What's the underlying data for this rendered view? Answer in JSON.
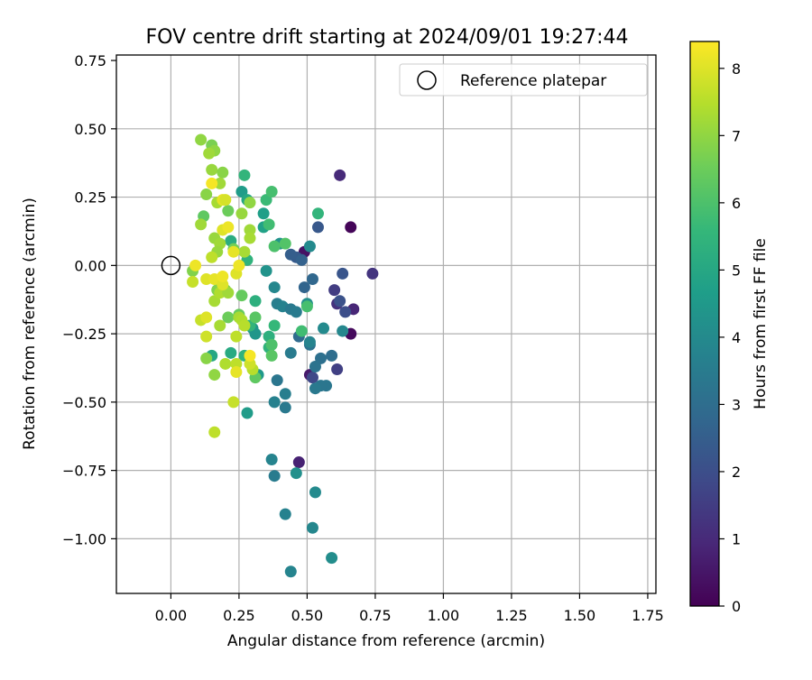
{
  "chart_data": {
    "type": "scatter",
    "title": "FOV centre drift starting at 2024/09/01 19:27:44",
    "xlabel": "Angular distance from reference (arcmin)",
    "ylabel": "Rotation from reference (arcmin)",
    "xlim": [
      -0.2,
      1.78
    ],
    "ylim": [
      -1.2,
      0.77
    ],
    "xticks": [
      0.0,
      0.25,
      0.5,
      0.75,
      1.0,
      1.25,
      1.5,
      1.75
    ],
    "xtick_labels": [
      "0.00",
      "0.25",
      "0.50",
      "0.75",
      "1.00",
      "1.25",
      "1.50",
      "1.75"
    ],
    "yticks": [
      0.5,
      0.25,
      0.0,
      -0.25,
      -0.5,
      -0.75,
      -1.0
    ],
    "ytick_labels": [
      "0.50",
      "0.25",
      "0.00",
      "−0.25",
      "−0.50",
      "−0.75",
      "−1.00"
    ],
    "ytick_top_label": "0.75",
    "grid": true,
    "legend": {
      "location": "upper right",
      "entries": [
        "Reference platepar"
      ]
    },
    "reference_point": {
      "x": 0.0,
      "y": 0.0
    },
    "colorbar": {
      "label": "Hours from first FF file",
      "colormap": "viridis",
      "range": [
        0,
        8.4
      ],
      "ticks": [
        0,
        1,
        2,
        3,
        4,
        5,
        6,
        7,
        8
      ],
      "tick_labels": [
        "0",
        "1",
        "2",
        "3",
        "4",
        "5",
        "6",
        "7",
        "8"
      ]
    },
    "points": [
      {
        "x": 0.66,
        "y": 0.14,
        "c": 0.1
      },
      {
        "x": 0.66,
        "y": -0.25,
        "c": 0.2
      },
      {
        "x": 0.49,
        "y": 0.05,
        "c": 0.4
      },
      {
        "x": 0.51,
        "y": -0.4,
        "c": 0.6
      },
      {
        "x": 0.47,
        "y": -0.72,
        "c": 0.8
      },
      {
        "x": 0.67,
        "y": -0.16,
        "c": 0.9
      },
      {
        "x": 0.62,
        "y": 0.33,
        "c": 1.0
      },
      {
        "x": 0.61,
        "y": -0.14,
        "c": 1.2
      },
      {
        "x": 0.74,
        "y": -0.03,
        "c": 1.3
      },
      {
        "x": 0.6,
        "y": -0.09,
        "c": 1.5
      },
      {
        "x": 0.61,
        "y": -0.38,
        "c": 1.6
      },
      {
        "x": 0.52,
        "y": -0.41,
        "c": 1.8
      },
      {
        "x": 0.64,
        "y": -0.17,
        "c": 2.0
      },
      {
        "x": 0.62,
        "y": -0.13,
        "c": 2.1
      },
      {
        "x": 0.63,
        "y": -0.03,
        "c": 2.2
      },
      {
        "x": 0.54,
        "y": 0.14,
        "c": 2.3
      },
      {
        "x": 0.46,
        "y": 0.03,
        "c": 2.4
      },
      {
        "x": 0.44,
        "y": 0.04,
        "c": 2.5
      },
      {
        "x": 0.48,
        "y": 0.02,
        "c": 2.6
      },
      {
        "x": 0.49,
        "y": -0.08,
        "c": 2.7
      },
      {
        "x": 0.52,
        "y": -0.05,
        "c": 2.8
      },
      {
        "x": 0.47,
        "y": -0.26,
        "c": 2.9
      },
      {
        "x": 0.59,
        "y": -0.33,
        "c": 3.0
      },
      {
        "x": 0.55,
        "y": -0.34,
        "c": 3.1
      },
      {
        "x": 0.53,
        "y": -0.37,
        "c": 3.2
      },
      {
        "x": 0.57,
        "y": -0.44,
        "c": 3.3
      },
      {
        "x": 0.55,
        "y": -0.44,
        "c": 3.3
      },
      {
        "x": 0.53,
        "y": -0.45,
        "c": 3.4
      },
      {
        "x": 0.51,
        "y": -0.29,
        "c": 3.2
      },
      {
        "x": 0.44,
        "y": -0.32,
        "c": 3.5
      },
      {
        "x": 0.42,
        "y": -0.52,
        "c": 3.4
      },
      {
        "x": 0.42,
        "y": -0.47,
        "c": 3.6
      },
      {
        "x": 0.39,
        "y": -0.42,
        "c": 3.3
      },
      {
        "x": 0.38,
        "y": -0.5,
        "c": 3.7
      },
      {
        "x": 0.38,
        "y": -0.77,
        "c": 3.5
      },
      {
        "x": 0.37,
        "y": -0.71,
        "c": 3.8
      },
      {
        "x": 0.42,
        "y": -0.91,
        "c": 3.7
      },
      {
        "x": 0.44,
        "y": -1.12,
        "c": 3.8
      },
      {
        "x": 0.52,
        "y": -0.96,
        "c": 3.9
      },
      {
        "x": 0.53,
        "y": -0.83,
        "c": 4.0
      },
      {
        "x": 0.59,
        "y": -1.07,
        "c": 4.1
      },
      {
        "x": 0.46,
        "y": -0.76,
        "c": 4.2
      },
      {
        "x": 0.39,
        "y": -0.14,
        "c": 3.6
      },
      {
        "x": 0.41,
        "y": -0.15,
        "c": 3.7
      },
      {
        "x": 0.38,
        "y": -0.08,
        "c": 3.9
      },
      {
        "x": 0.44,
        "y": -0.16,
        "c": 3.4
      },
      {
        "x": 0.46,
        "y": -0.17,
        "c": 3.5
      },
      {
        "x": 0.51,
        "y": -0.28,
        "c": 3.8
      },
      {
        "x": 0.56,
        "y": -0.23,
        "c": 4.0
      },
      {
        "x": 0.63,
        "y": -0.24,
        "c": 3.9
      },
      {
        "x": 0.5,
        "y": -0.14,
        "c": 4.2
      },
      {
        "x": 0.51,
        "y": 0.07,
        "c": 4.0
      },
      {
        "x": 0.4,
        "y": 0.08,
        "c": 4.3
      },
      {
        "x": 0.35,
        "y": -0.02,
        "c": 4.3
      },
      {
        "x": 0.31,
        "y": -0.25,
        "c": 4.4
      },
      {
        "x": 0.3,
        "y": -0.23,
        "c": 4.4
      },
      {
        "x": 0.32,
        "y": -0.4,
        "c": 4.5
      },
      {
        "x": 0.28,
        "y": -0.54,
        "c": 4.6
      },
      {
        "x": 0.26,
        "y": 0.27,
        "c": 4.6
      },
      {
        "x": 0.34,
        "y": 0.19,
        "c": 4.7
      },
      {
        "x": 0.34,
        "y": 0.14,
        "c": 4.8
      },
      {
        "x": 0.28,
        "y": 0.24,
        "c": 5.0
      },
      {
        "x": 0.22,
        "y": 0.09,
        "c": 5.2
      },
      {
        "x": 0.28,
        "y": 0.02,
        "c": 5.4
      },
      {
        "x": 0.15,
        "y": -0.33,
        "c": 5.0
      },
      {
        "x": 0.22,
        "y": -0.32,
        "c": 5.1
      },
      {
        "x": 0.27,
        "y": -0.33,
        "c": 5.4
      },
      {
        "x": 0.31,
        "y": -0.13,
        "c": 5.3
      },
      {
        "x": 0.29,
        "y": -0.22,
        "c": 5.5
      },
      {
        "x": 0.36,
        "y": -0.26,
        "c": 5.3
      },
      {
        "x": 0.36,
        "y": -0.3,
        "c": 5.4
      },
      {
        "x": 0.38,
        "y": -0.22,
        "c": 5.6
      },
      {
        "x": 0.48,
        "y": -0.24,
        "c": 5.8
      },
      {
        "x": 0.5,
        "y": -0.15,
        "c": 5.9
      },
      {
        "x": 0.54,
        "y": 0.19,
        "c": 5.5
      },
      {
        "x": 0.35,
        "y": 0.24,
        "c": 5.7
      },
      {
        "x": 0.36,
        "y": 0.15,
        "c": 5.8
      },
      {
        "x": 0.37,
        "y": 0.27,
        "c": 5.9
      },
      {
        "x": 0.27,
        "y": 0.33,
        "c": 5.5
      },
      {
        "x": 0.38,
        "y": 0.07,
        "c": 6.0
      },
      {
        "x": 0.42,
        "y": 0.08,
        "c": 6.1
      },
      {
        "x": 0.37,
        "y": -0.29,
        "c": 6.0
      },
      {
        "x": 0.37,
        "y": -0.33,
        "c": 6.2
      },
      {
        "x": 0.31,
        "y": -0.19,
        "c": 6.2
      },
      {
        "x": 0.31,
        "y": -0.41,
        "c": 6.3
      },
      {
        "x": 0.25,
        "y": -0.18,
        "c": 6.4
      },
      {
        "x": 0.26,
        "y": -0.11,
        "c": 6.4
      },
      {
        "x": 0.21,
        "y": -0.19,
        "c": 6.5
      },
      {
        "x": 0.12,
        "y": 0.18,
        "c": 6.3
      },
      {
        "x": 0.21,
        "y": 0.2,
        "c": 6.5
      },
      {
        "x": 0.23,
        "y": 0.06,
        "c": 6.6
      },
      {
        "x": 0.2,
        "y": -0.09,
        "c": 6.7
      },
      {
        "x": 0.17,
        "y": -0.09,
        "c": 6.8
      },
      {
        "x": 0.13,
        "y": -0.34,
        "c": 6.9
      },
      {
        "x": 0.16,
        "y": -0.4,
        "c": 7.0
      },
      {
        "x": 0.08,
        "y": -0.02,
        "c": 6.8
      },
      {
        "x": 0.13,
        "y": 0.26,
        "c": 6.9
      },
      {
        "x": 0.15,
        "y": 0.44,
        "c": 6.7
      },
      {
        "x": 0.11,
        "y": 0.46,
        "c": 7.0
      },
      {
        "x": 0.16,
        "y": 0.42,
        "c": 7.0
      },
      {
        "x": 0.14,
        "y": 0.41,
        "c": 7.2
      },
      {
        "x": 0.15,
        "y": 0.35,
        "c": 7.1
      },
      {
        "x": 0.19,
        "y": 0.34,
        "c": 6.9
      },
      {
        "x": 0.18,
        "y": 0.3,
        "c": 7.2
      },
      {
        "x": 0.17,
        "y": 0.23,
        "c": 7.3
      },
      {
        "x": 0.26,
        "y": 0.19,
        "c": 7.1
      },
      {
        "x": 0.29,
        "y": 0.23,
        "c": 7.0
      },
      {
        "x": 0.29,
        "y": 0.13,
        "c": 7.2
      },
      {
        "x": 0.29,
        "y": 0.1,
        "c": 7.3
      },
      {
        "x": 0.27,
        "y": 0.05,
        "c": 7.3
      },
      {
        "x": 0.16,
        "y": 0.1,
        "c": 7.1
      },
      {
        "x": 0.18,
        "y": 0.08,
        "c": 7.2
      },
      {
        "x": 0.17,
        "y": 0.05,
        "c": 7.1
      },
      {
        "x": 0.15,
        "y": 0.03,
        "c": 7.6
      },
      {
        "x": 0.11,
        "y": 0.15,
        "c": 7.2
      },
      {
        "x": 0.16,
        "y": -0.13,
        "c": 7.3
      },
      {
        "x": 0.18,
        "y": -0.1,
        "c": 7.4
      },
      {
        "x": 0.21,
        "y": -0.1,
        "c": 7.2
      },
      {
        "x": 0.18,
        "y": -0.22,
        "c": 7.3
      },
      {
        "x": 0.25,
        "y": -0.19,
        "c": 7.3
      },
      {
        "x": 0.26,
        "y": -0.2,
        "c": 7.4
      },
      {
        "x": 0.27,
        "y": -0.22,
        "c": 7.5
      },
      {
        "x": 0.24,
        "y": -0.26,
        "c": 7.6
      },
      {
        "x": 0.2,
        "y": -0.36,
        "c": 7.4
      },
      {
        "x": 0.23,
        "y": -0.5,
        "c": 7.7
      },
      {
        "x": 0.24,
        "y": -0.36,
        "c": 7.6
      },
      {
        "x": 0.3,
        "y": -0.38,
        "c": 7.5
      },
      {
        "x": 0.29,
        "y": -0.36,
        "c": 7.8
      },
      {
        "x": 0.16,
        "y": -0.61,
        "c": 7.6
      },
      {
        "x": 0.11,
        "y": -0.2,
        "c": 7.7
      },
      {
        "x": 0.13,
        "y": -0.26,
        "c": 7.8
      },
      {
        "x": 0.13,
        "y": -0.19,
        "c": 8.0
      },
      {
        "x": 0.08,
        "y": -0.06,
        "c": 7.7
      },
      {
        "x": 0.13,
        "y": -0.05,
        "c": 8.0
      },
      {
        "x": 0.16,
        "y": -0.05,
        "c": 8.1
      },
      {
        "x": 0.19,
        "y": -0.07,
        "c": 8.0
      },
      {
        "x": 0.19,
        "y": -0.04,
        "c": 8.2
      },
      {
        "x": 0.24,
        "y": -0.03,
        "c": 8.0
      },
      {
        "x": 0.25,
        "y": 0.0,
        "c": 8.2
      },
      {
        "x": 0.23,
        "y": 0.05,
        "c": 8.1
      },
      {
        "x": 0.19,
        "y": 0.13,
        "c": 8.0
      },
      {
        "x": 0.21,
        "y": 0.14,
        "c": 8.2
      },
      {
        "x": 0.19,
        "y": 0.24,
        "c": 8.1
      },
      {
        "x": 0.15,
        "y": 0.3,
        "c": 8.3
      },
      {
        "x": 0.09,
        "y": 0.0,
        "c": 8.2
      },
      {
        "x": 0.24,
        "y": -0.39,
        "c": 8.1
      },
      {
        "x": 0.29,
        "y": -0.33,
        "c": 8.3
      },
      {
        "x": 0.2,
        "y": 0.24,
        "c": 7.9
      }
    ]
  }
}
